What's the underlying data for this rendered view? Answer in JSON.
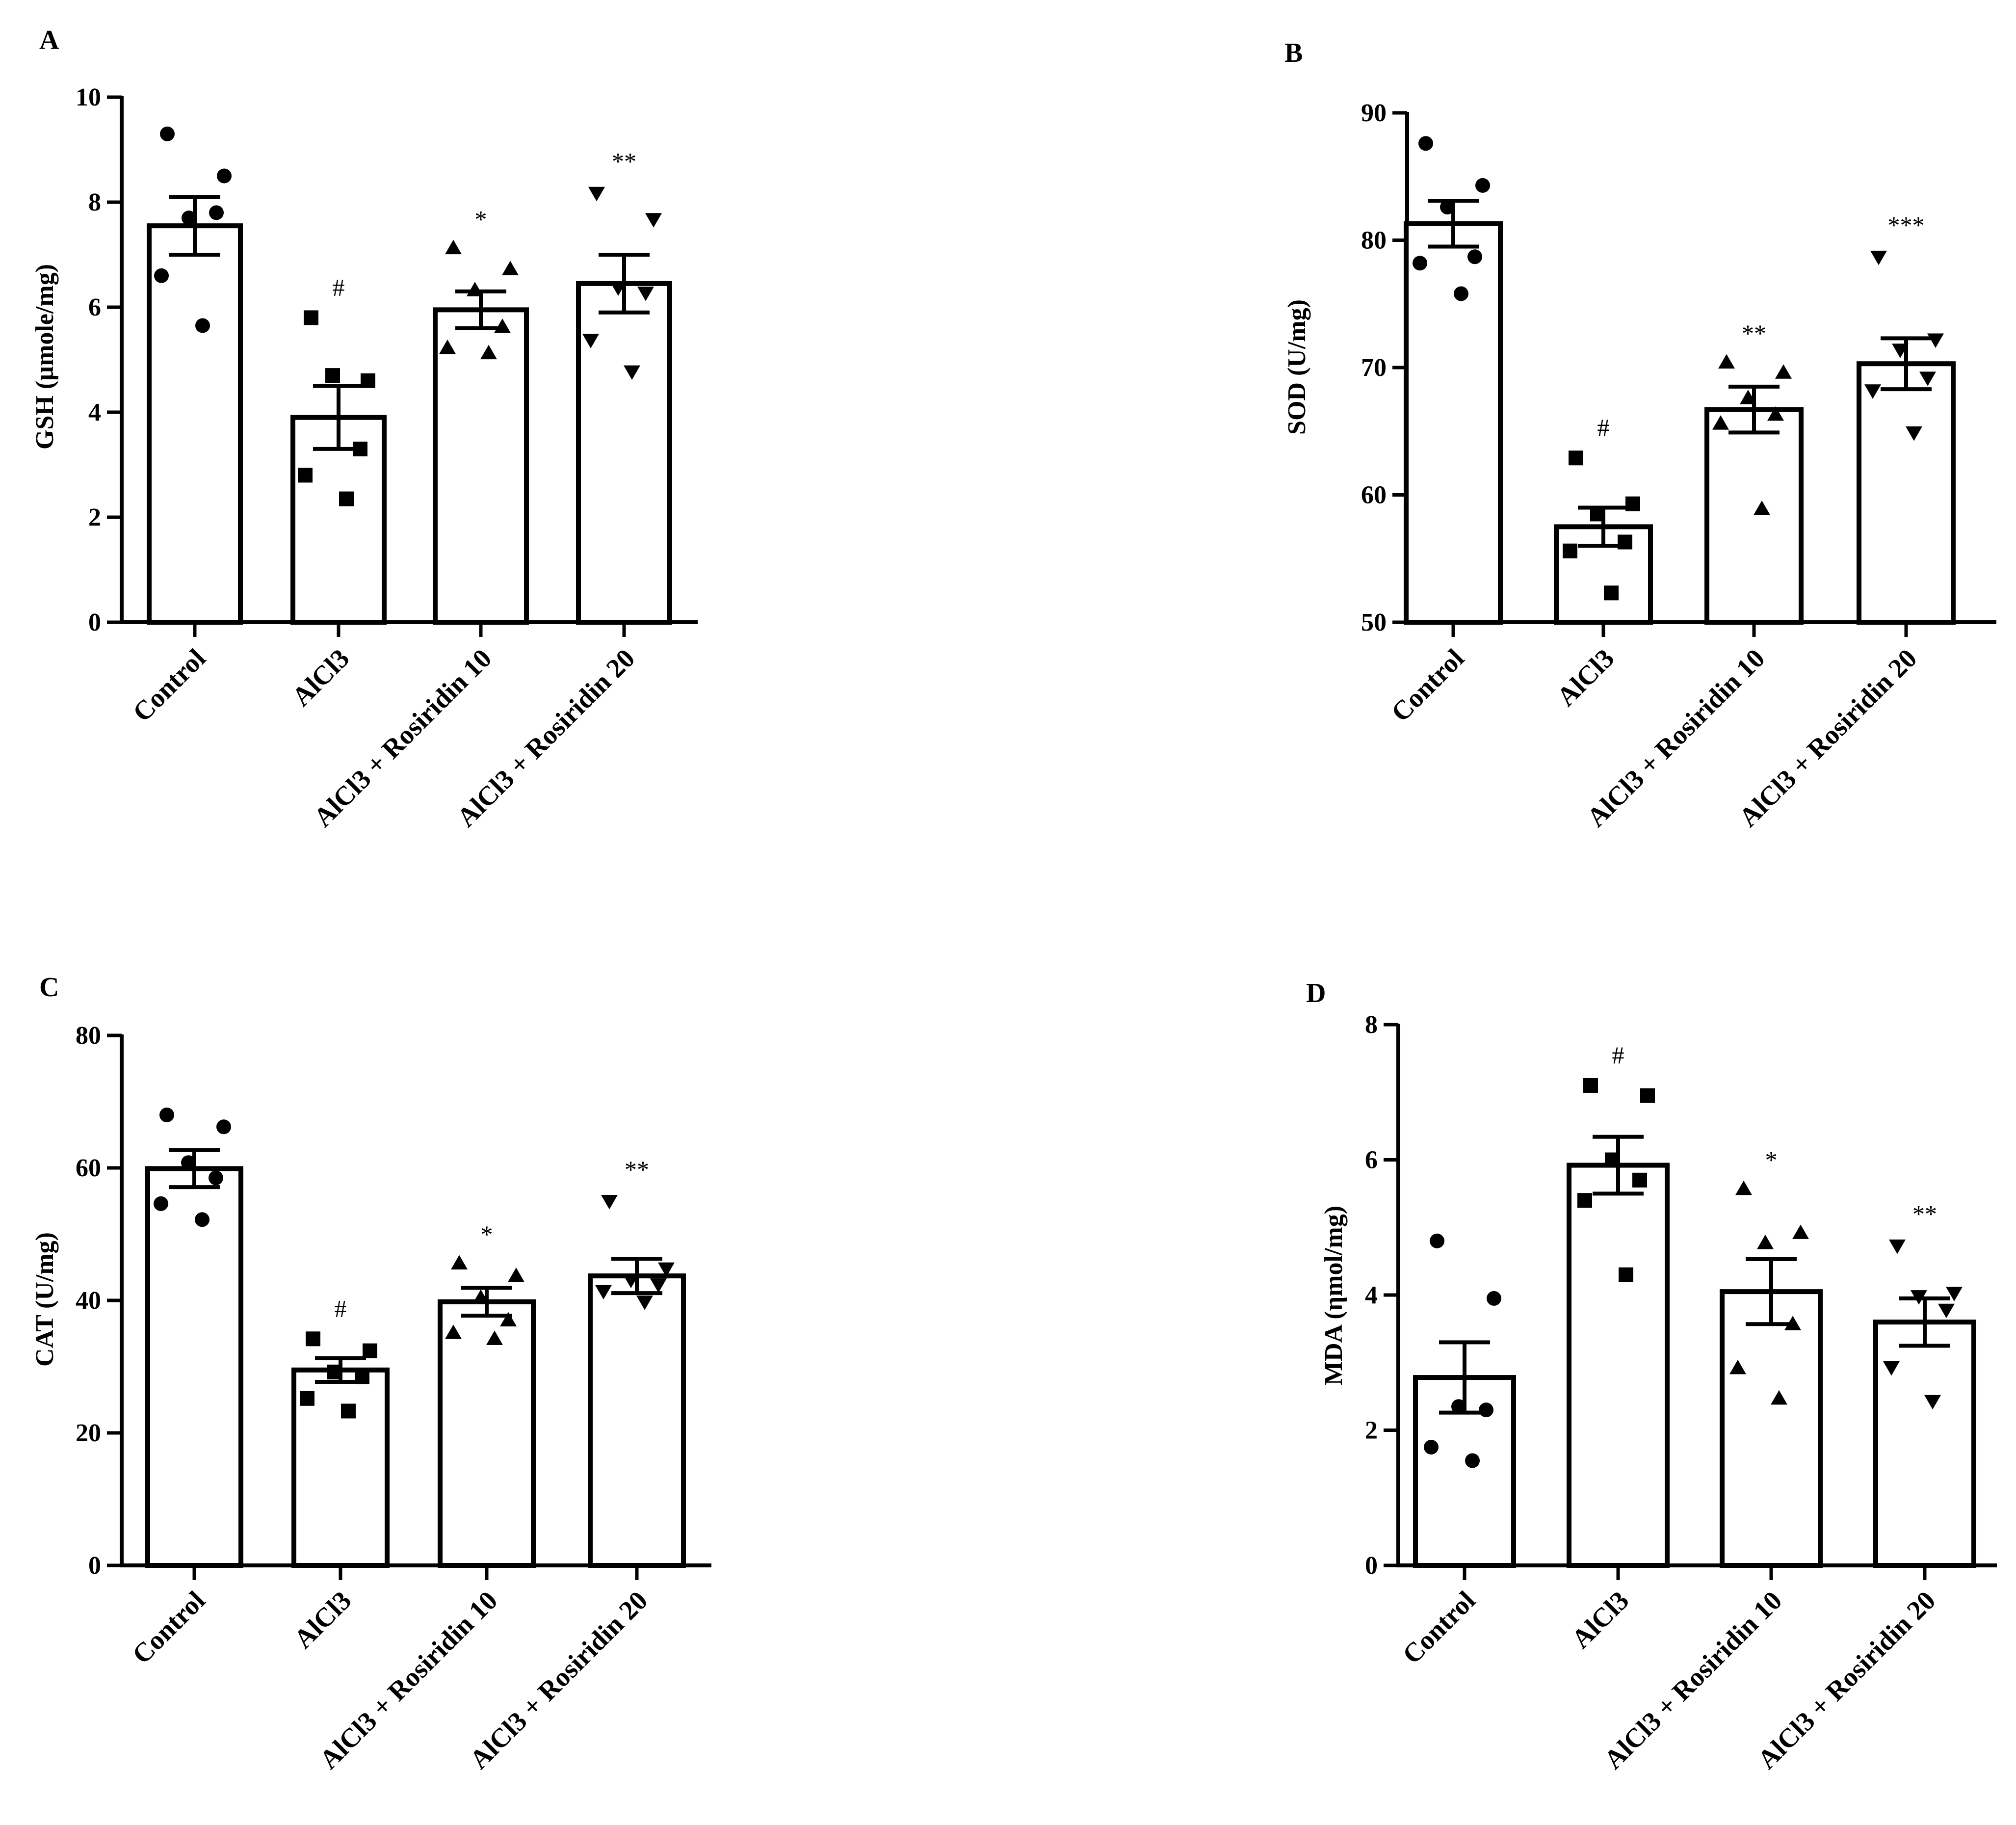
{
  "chart_data": [
    {
      "type": "bar",
      "panel": "A",
      "ylabel": "GSH (µmole/mg)",
      "ylim": [
        0,
        10
      ],
      "yticks": [
        0,
        2,
        4,
        6,
        8,
        10
      ],
      "categories": [
        "Control",
        "AlCl3",
        "AlCl3 + Rosiridin 10",
        "AlCl3 + Rosiridin 20"
      ],
      "values": [
        7.55,
        3.9,
        5.95,
        6.45
      ],
      "sem": [
        0.55,
        0.6,
        0.35,
        0.55
      ],
      "significance": [
        "",
        "#",
        "*",
        "**"
      ],
      "markers": [
        "circle",
        "square",
        "triangle-up",
        "triangle-down"
      ],
      "points": [
        [
          9.3,
          8.5,
          7.7,
          7.8,
          6.6,
          5.65
        ],
        [
          5.8,
          4.6,
          4.7,
          3.3,
          2.8,
          2.35
        ],
        [
          7.1,
          6.7,
          6.3,
          5.6,
          5.2,
          5.1
        ],
        [
          8.2,
          7.7,
          6.4,
          6.3,
          5.4,
          4.8
        ]
      ]
    },
    {
      "type": "bar",
      "panel": "B",
      "ylabel": "SOD (U/mg)",
      "ylim": [
        50,
        90
      ],
      "yticks": [
        50,
        60,
        70,
        80,
        90
      ],
      "categories": [
        "Control",
        "AlCl3",
        "AlCl3 + Rosiridin 10",
        "AlCl3 + Rosiridin 20"
      ],
      "values": [
        81.3,
        57.5,
        66.7,
        70.3
      ],
      "sem": [
        1.8,
        1.5,
        1.8,
        2.0
      ],
      "significance": [
        "",
        "#",
        "**",
        "***"
      ],
      "markers": [
        "circle",
        "square",
        "triangle-up",
        "triangle-down"
      ],
      "points": [
        [
          87.6,
          84.3,
          82.6,
          78.7,
          78.2,
          75.8
        ],
        [
          62.9,
          59.3,
          58.5,
          56.3,
          55.6,
          52.3
        ],
        [
          70.3,
          69.5,
          67.5,
          66.2,
          65.5,
          58.8
        ],
        [
          78.8,
          72.3,
          71.5,
          69.3,
          68.3,
          65.0
        ]
      ]
    },
    {
      "type": "bar",
      "panel": "C",
      "ylabel": "CAT (U/mg)",
      "ylim": [
        0,
        80
      ],
      "yticks": [
        0,
        20,
        40,
        60,
        80
      ],
      "categories": [
        "Control",
        "AlCl3",
        "AlCl3 + Rosiridin 10",
        "AlCl3 + Rosiridin 20"
      ],
      "values": [
        59.9,
        29.5,
        39.8,
        43.7
      ],
      "sem": [
        2.8,
        1.8,
        2.1,
        2.6
      ],
      "significance": [
        "",
        "#",
        "*",
        "**"
      ],
      "markers": [
        "circle",
        "square",
        "triangle-up",
        "triangle-down"
      ],
      "points": [
        [
          68.0,
          66.2,
          60.8,
          58.5,
          54.6,
          52.2
        ],
        [
          34.2,
          32.4,
          29.2,
          28.5,
          25.2,
          23.3
        ],
        [
          45.4,
          43.5,
          40.2,
          36.8,
          34.9,
          34.0
        ],
        [
          55.2,
          45.0,
          43.3,
          42.6,
          41.6,
          40.0
        ]
      ]
    },
    {
      "type": "bar",
      "panel": "D",
      "ylabel": "MDA (ηmol/mg)",
      "ylim": [
        0,
        8
      ],
      "yticks": [
        0,
        2,
        4,
        6,
        8
      ],
      "categories": [
        "Control",
        "AlCl3",
        "AlCl3 + Rosiridin 10",
        "AlCl3 + Rosiridin 20"
      ],
      "values": [
        2.78,
        5.92,
        4.05,
        3.6
      ],
      "sem": [
        0.52,
        0.42,
        0.48,
        0.35
      ],
      "significance": [
        "",
        "#",
        "*",
        "**"
      ],
      "markers": [
        "circle",
        "square",
        "triangle-up",
        "triangle-down"
      ],
      "points": [
        [
          4.8,
          3.95,
          2.35,
          2.3,
          1.75,
          1.55
        ],
        [
          7.1,
          6.95,
          6.0,
          5.7,
          5.4,
          4.3
        ],
        [
          5.55,
          4.9,
          4.75,
          3.55,
          2.9,
          2.45
        ],
        [
          4.75,
          4.05,
          4.0,
          3.8,
          2.95,
          2.45
        ]
      ]
    }
  ]
}
